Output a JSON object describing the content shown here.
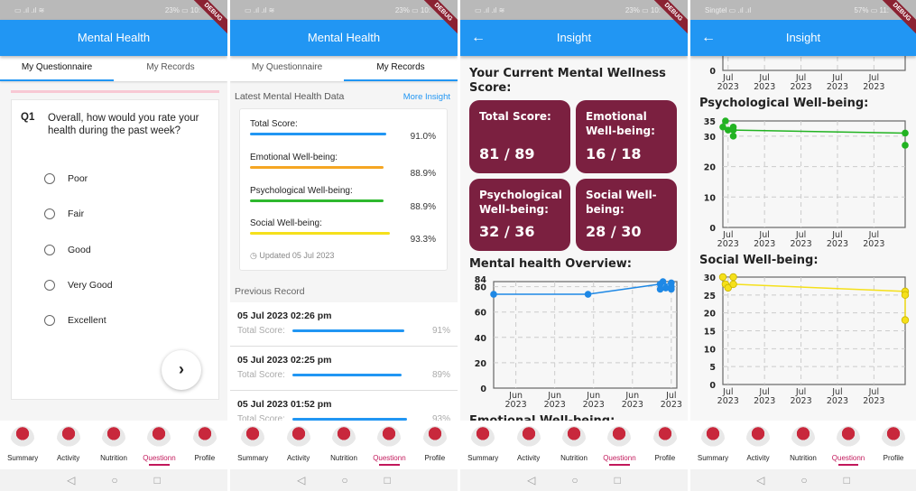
{
  "status": {
    "panel1": {
      "left": "▭ .ıl .ıl ≋",
      "right": "23% ▭ 10:"
    },
    "panel2": {
      "left": "▭ .ıl .ıl ≋",
      "right": "23% ▭ 10:"
    },
    "panel3": {
      "left": "▭ .ıl .ıl ≋",
      "right": "23% ▭ 10:"
    },
    "panel4": {
      "left": "Singtel ▭ .ıl .ıl",
      "right": "57% ▭ 11:"
    }
  },
  "debug_label": "DEBUG",
  "mental_health": {
    "title": "Mental Health",
    "tabs": [
      {
        "label": "My Questionnaire"
      },
      {
        "label": "My Records"
      }
    ]
  },
  "questionnaire": {
    "number": "Q1",
    "question": "Overall, how would you rate your health during the past week?",
    "options": [
      "Poor",
      "Fair",
      "Good",
      "Very Good",
      "Excellent"
    ],
    "next_icon": "chevron-right"
  },
  "records": {
    "latest_title": "Latest Mental Health Data",
    "more_insight": "More Insight",
    "items": [
      {
        "label": "Total Score:",
        "value": "91.0%",
        "color": "#2196f3",
        "pct": 91.0
      },
      {
        "label": "Emotional Well-being:",
        "value": "88.9%",
        "color": "#f5a623",
        "pct": 88.9
      },
      {
        "label": "Psychological Well-being:",
        "value": "88.9%",
        "color": "#2eb82e",
        "pct": 88.9
      },
      {
        "label": "Social Well-being:",
        "value": "93.3%",
        "color": "#f5e01b",
        "pct": 93.3
      }
    ],
    "updated": "Updated 05 Jul 2023",
    "previous_title": "Previous Record",
    "previous": [
      {
        "date": "05 Jul 2023 02:26 pm",
        "label": "Total Score:",
        "value": "91%",
        "pct": 91
      },
      {
        "date": "05 Jul 2023 02:25 pm",
        "label": "Total Score:",
        "value": "89%",
        "pct": 89
      },
      {
        "date": "05 Jul 2023 01:52 pm",
        "label": "Total Score:",
        "value": "93%",
        "pct": 93
      }
    ]
  },
  "insight": {
    "title": "Insight",
    "score_heading": "Your Current Mental Wellness Score:",
    "scores": [
      {
        "label": "Total Score:",
        "value": "81 / 89"
      },
      {
        "label": "Emotional Well-being:",
        "value": "16 / 18"
      },
      {
        "label": "Psychological Well-being:",
        "value": "32 / 36"
      },
      {
        "label": "Social Well-being:",
        "value": "28 / 30"
      }
    ],
    "box_color": "#7b2040",
    "overview_heading": "Mental health Overview:",
    "emotional_heading": "Emotional Well-being:",
    "psych_heading": "Psychological Well-being:",
    "social_heading": "Social Well-being:"
  },
  "bottom_nav": [
    "Summary",
    "Activity",
    "Nutrition",
    "Questionn",
    "Profile"
  ],
  "system_nav": [
    "◁",
    "○",
    "□"
  ],
  "chart_data": [
    {
      "type": "line",
      "title": "Mental health Overview:",
      "color": "#1e88e5",
      "ylim": [
        0,
        84
      ],
      "yticks": [
        0,
        20,
        40,
        60,
        80,
        84
      ],
      "xlim": [
        "2023-05-30",
        "2023-07-02"
      ],
      "xticks": [
        {
          "x": "2023-06-03",
          "label": "Jun\n2023"
        },
        {
          "x": "2023-06-10",
          "label": "Jun\n2023"
        },
        {
          "x": "2023-06-17",
          "label": "Jun\n2023"
        },
        {
          "x": "2023-06-24",
          "label": "Jun\n2023"
        },
        {
          "x": "2023-07-01",
          "label": "Jul\n2023"
        }
      ],
      "grid": true,
      "line": [
        {
          "x": "2023-05-30",
          "y": 74
        },
        {
          "x": "2023-06-16",
          "y": 74
        },
        {
          "x": "2023-06-29",
          "y": 82
        },
        {
          "x": "2023-07-01",
          "y": 82
        }
      ],
      "points": [
        {
          "x": "2023-05-30",
          "y": 74
        },
        {
          "x": "2023-06-16",
          "y": 74
        },
        {
          "x": "2023-06-29",
          "y": 82
        },
        {
          "x": "2023-06-29",
          "y": 78
        },
        {
          "x": "2023-06-29.5",
          "y": 84
        },
        {
          "x": "2023-06-30",
          "y": 79
        },
        {
          "x": "2023-07-01",
          "y": 83
        },
        {
          "x": "2023-07-01",
          "y": 80
        },
        {
          "x": "2023-07-01",
          "y": 78
        }
      ]
    },
    {
      "type": "line",
      "title": "Emotional Well-being:",
      "partial": true,
      "color": "#f5a623",
      "ylim": [
        0,
        18
      ],
      "yticks": [
        0
      ],
      "xlim": [
        "2023-06-30",
        "2023-08-04"
      ],
      "xticks": [
        {
          "x": "2023-07-01",
          "label": "Jul\n2023"
        },
        {
          "x": "2023-07-08",
          "label": "Jul\n2023"
        },
        {
          "x": "2023-07-15",
          "label": "Jul\n2023"
        },
        {
          "x": "2023-07-22",
          "label": "Jul\n2023"
        },
        {
          "x": "2023-07-29",
          "label": "Jul\n2023"
        }
      ],
      "grid": true,
      "line": [],
      "points": []
    },
    {
      "type": "line",
      "title": "Psychological Well-being:",
      "color": "#22b322",
      "ylim": [
        0,
        35
      ],
      "yticks": [
        0,
        10,
        20,
        30,
        35
      ],
      "xlim": [
        "2023-06-30",
        "2023-08-04"
      ],
      "xticks": [
        {
          "x": "2023-07-01",
          "label": "Jul\n2023"
        },
        {
          "x": "2023-07-08",
          "label": "Jul\n2023"
        },
        {
          "x": "2023-07-15",
          "label": "Jul\n2023"
        },
        {
          "x": "2023-07-22",
          "label": "Jul\n2023"
        },
        {
          "x": "2023-07-29",
          "label": "Jul\n2023"
        }
      ],
      "grid": true,
      "line": [
        {
          "x": "2023-07-02",
          "y": 32
        },
        {
          "x": "2023-08-04",
          "y": 31
        }
      ],
      "points": [
        {
          "x": "2023-06-30",
          "y": 33
        },
        {
          "x": "2023-06-30.5",
          "y": 35
        },
        {
          "x": "2023-06-31",
          "y": 32
        },
        {
          "x": "2023-07-02",
          "y": 33
        },
        {
          "x": "2023-07-02",
          "y": 32
        },
        {
          "x": "2023-07-02",
          "y": 30
        },
        {
          "x": "2023-08-04",
          "y": 31
        },
        {
          "x": "2023-08-04",
          "y": 27
        }
      ]
    },
    {
      "type": "line",
      "title": "Social Well-being:",
      "color": "#f5e01b",
      "ylim": [
        0,
        30
      ],
      "yticks": [
        0,
        5,
        10,
        15,
        20,
        25,
        30
      ],
      "xlim": [
        "2023-06-30",
        "2023-08-04"
      ],
      "xticks": [
        {
          "x": "2023-07-01",
          "label": "Jul\n2023"
        },
        {
          "x": "2023-07-08",
          "label": "Jul\n2023"
        },
        {
          "x": "2023-07-15",
          "label": "Jul\n2023"
        },
        {
          "x": "2023-07-22",
          "label": "Jul\n2023"
        },
        {
          "x": "2023-07-29",
          "label": "Jul\n2023"
        }
      ],
      "grid": true,
      "line": [
        {
          "x": "2023-07-02",
          "y": 28
        },
        {
          "x": "2023-08-04",
          "y": 26
        },
        {
          "x": "2023-08-04",
          "y": 18
        }
      ],
      "points": [
        {
          "x": "2023-06-30",
          "y": 30
        },
        {
          "x": "2023-06-30.5",
          "y": 28
        },
        {
          "x": "2023-06-31",
          "y": 27
        },
        {
          "x": "2023-07-02",
          "y": 30
        },
        {
          "x": "2023-07-02",
          "y": 28
        },
        {
          "x": "2023-08-04",
          "y": 26
        },
        {
          "x": "2023-08-04",
          "y": 25
        },
        {
          "x": "2023-08-04",
          "y": 18
        }
      ]
    }
  ]
}
